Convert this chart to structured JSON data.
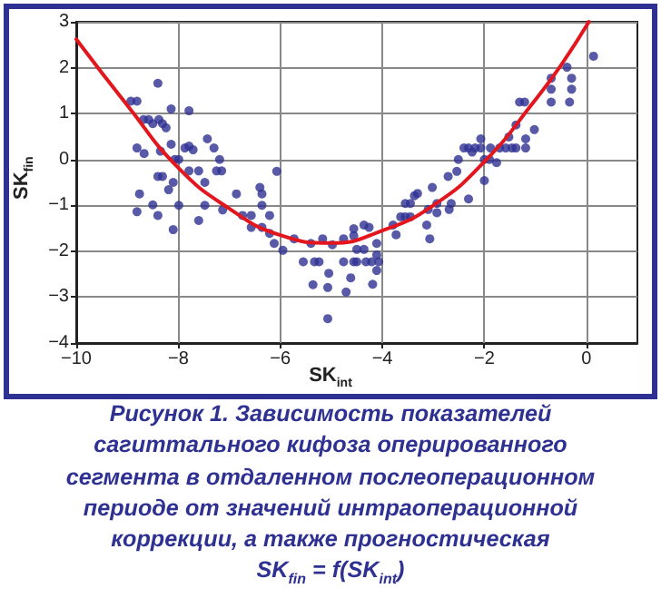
{
  "chart_data": {
    "type": "scatter",
    "xlabel": "SK$_{int}$",
    "ylabel": "SK$_{fin}$",
    "annotations": [
      "Рисунок 1. Зависимость показателей\nсагиттального кифоза оперированного\nсегмента в отдаленном послеоперационном\nпериоде от значений интраоперационной\nкоррекции, а также прогностическая\nSK$_{fin}$ = f(SK$_{int}$)"
    ],
    "xlim": [
      -10,
      1
    ],
    "ylim": [
      -4,
      3
    ],
    "xticks": [
      -10,
      -8,
      -6,
      -4,
      -2,
      0
    ],
    "yticks": [
      -4,
      -3,
      -2,
      -1,
      0,
      1,
      2,
      3
    ],
    "grid": true,
    "marker": "circle",
    "series": [
      {
        "color": "#2e3192",
        "x": [
          -8.93,
          -8.81,
          -8.4,
          -8.68,
          -8.58,
          -8.5,
          -8.38,
          -8.31,
          -8.24,
          -8.14,
          -7.79,
          -8.81,
          -8.67,
          -8.35,
          -8.14,
          -8.07,
          -7.99,
          -7.87,
          -7.79,
          -7.71,
          -7.43,
          -7.3,
          -7.19,
          -7.25,
          -7.15,
          -7.6,
          -7.79,
          -7.48,
          -8.4,
          -8.31,
          -8.1,
          -8.19,
          -8.76,
          -8.5,
          -8.81,
          -8.4,
          -7.99,
          -7.48,
          -7.13,
          -8.1,
          -7.6,
          -6.86,
          -6.74,
          -6.57,
          -6.57,
          -6.4,
          -6.36,
          -6.36,
          -6.36,
          -6.21,
          -6.21,
          -6.07,
          -6.12,
          -5.95,
          -5.73,
          -5.55,
          -5.4,
          -5.33,
          -5.24,
          -5.36,
          -5.17,
          -5.05,
          -5.07,
          -5.07,
          -4.98,
          -4.76,
          -4.71,
          -4.76,
          -4.62,
          -4.56,
          -4.56,
          -4.56,
          -4.5,
          -4.5,
          -4.36,
          -4.36,
          -4.26,
          -4.32,
          -4.21,
          -4.19,
          -4.11,
          -4.11,
          -4.11,
          -4.07,
          -3.79,
          -3.73,
          -3.64,
          -3.55,
          -3.45,
          -3.55,
          -3.45,
          -3.37,
          -3.31,
          -3.13,
          -3.07,
          -3.1,
          -3.02,
          -2.93,
          -2.93,
          -2.69,
          -2.65,
          -2.71,
          -2.54,
          -2.51,
          -2.31,
          -2.4,
          -2.31,
          -2.24,
          -2.18,
          -2.07,
          -2.07,
          -2,
          -2,
          -1.9,
          -1.88,
          -1.76,
          -1.7,
          -1.58,
          -1.52,
          -1.46,
          -1.38,
          -1.38,
          -1.31,
          -1.21,
          -1.19,
          -1.19,
          -1.02,
          -0.69,
          -0.69,
          -0.69,
          -0.38,
          -0.29,
          -0.29,
          -0.33,
          0.14
        ],
        "values": [
          1.27,
          1.27,
          1.66,
          0.87,
          0.87,
          0.78,
          0.87,
          0.78,
          0.69,
          1.1,
          1.06,
          0.25,
          0.13,
          0.18,
          0.33,
          0,
          0,
          0.25,
          0.29,
          0.21,
          0.45,
          0.25,
          0,
          -0.25,
          -0.25,
          -0.25,
          -0.25,
          -0.5,
          -0.37,
          -0.37,
          -0.5,
          -0.66,
          -0.75,
          -0.99,
          -1.14,
          -1.22,
          -1,
          -1,
          -1.1,
          -1.53,
          -1.33,
          -0.75,
          -1.22,
          -1.22,
          -1.48,
          -0.61,
          -0.75,
          -1,
          -1.48,
          -1.22,
          -1.61,
          -0.26,
          -1.83,
          -1.98,
          -1.73,
          -2.23,
          -1.83,
          -2.23,
          -2.23,
          -2.73,
          -1.73,
          -2.48,
          -2.79,
          -3.47,
          -1.86,
          -1.73,
          -2.89,
          -2.23,
          -2.58,
          -1.51,
          -1.66,
          -2.23,
          -1.96,
          -2.23,
          -1.43,
          -1.96,
          -1.48,
          -2.23,
          -2.23,
          -2.72,
          -1.83,
          -2.08,
          -2.42,
          -2.23,
          -1.43,
          -1.64,
          -1.25,
          -1.25,
          -1.25,
          -0.96,
          -0.96,
          -0.79,
          -0.74,
          -1.43,
          -1.73,
          -1.09,
          -0.61,
          -0.96,
          -1.16,
          -1.09,
          -0.96,
          -0.37,
          -0.26,
          0,
          -0.86,
          0.25,
          0.25,
          0.16,
          0.25,
          0.45,
          0.25,
          0,
          -0.46,
          0,
          0.25,
          -0.07,
          0.25,
          0.25,
          0.49,
          0.25,
          0.25,
          0.75,
          1.25,
          1.25,
          0.45,
          0.25,
          0.65,
          1.77,
          1.53,
          1.25,
          2.01,
          1.77,
          1.53,
          1.25,
          2.25
        ]
      },
      {
        "type": "line",
        "color": "#e3161e",
        "marker": "none",
        "line_style": "solid",
        "x": [
          -10,
          -9,
          -8,
          -7,
          -6,
          -5,
          -4,
          -3,
          -2,
          -1,
          -0.5,
          0.05
        ],
        "values": [
          2.62,
          1.18,
          -0.18,
          -1.07,
          -1.65,
          -1.82,
          -1.55,
          -1.0,
          -0.05,
          1.3,
          2.05,
          3
        ]
      }
    ]
  }
}
